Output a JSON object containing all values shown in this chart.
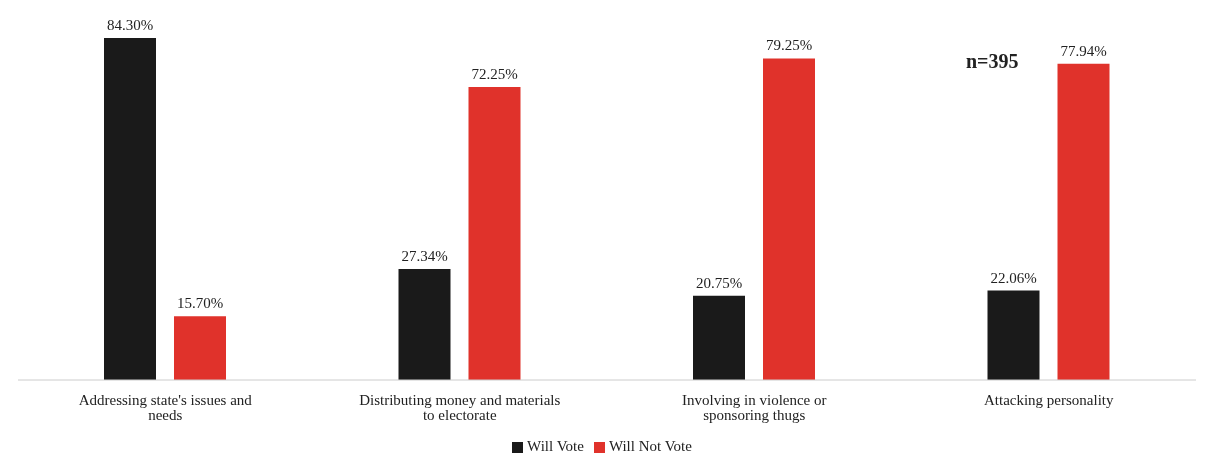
{
  "chart_data": {
    "type": "bar",
    "categories": [
      "Addressing state's issues and needs",
      "Distributing money and materials to electorate",
      "Involving in violence or sponsoring thugs",
      "Attacking personality"
    ],
    "series": [
      {
        "name": "Will Vote",
        "color": "#1a1a1a",
        "values": [
          84.3,
          27.34,
          20.75,
          22.06
        ],
        "value_labels": [
          "84.30%",
          "27.34%",
          "20.75%",
          "22.06%"
        ]
      },
      {
        "name": "Will Not Vote",
        "color": "#e0322b",
        "values": [
          15.7,
          72.25,
          79.25,
          77.94
        ],
        "value_labels": [
          "15.70%",
          "72.25%",
          "79.25%",
          "77.94%"
        ]
      }
    ],
    "annotations": [
      "n=395"
    ],
    "legend": "bottom"
  }
}
